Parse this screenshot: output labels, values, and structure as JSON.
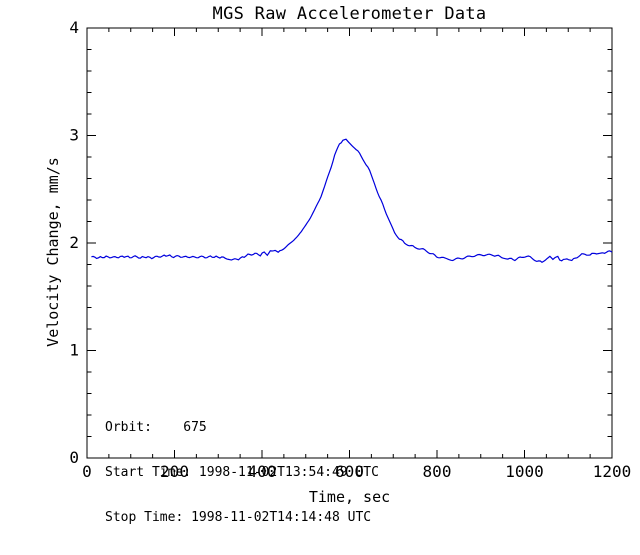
{
  "page": {
    "background": "#ffffff"
  },
  "chart_data": {
    "type": "line",
    "title": "MGS Raw Accelerometer Data",
    "xlabel": "Time, sec",
    "ylabel": "Velocity Change, mm/s",
    "xlim": [
      0,
      1200
    ],
    "ylim": [
      0,
      4
    ],
    "xticks": [
      0,
      200,
      400,
      600,
      800,
      1000,
      1200
    ],
    "yticks": [
      0,
      1,
      2,
      3,
      4
    ],
    "x_minor_step": 50,
    "y_minor_step": 0.2,
    "grid": false,
    "legend": null,
    "frame": "box-with-inward-ticks",
    "axis_color": "#000000",
    "series": [
      {
        "name": "velocity-change",
        "color": "#0000DD",
        "points": [
          [
            10,
            1.87
          ],
          [
            22,
            1.862
          ],
          [
            35,
            1.868
          ],
          [
            48,
            1.872
          ],
          [
            60,
            1.865
          ],
          [
            72,
            1.87
          ],
          [
            85,
            1.875
          ],
          [
            98,
            1.868
          ],
          [
            110,
            1.873
          ],
          [
            122,
            1.865
          ],
          [
            135,
            1.87
          ],
          [
            148,
            1.862
          ],
          [
            160,
            1.872
          ],
          [
            172,
            1.878
          ],
          [
            185,
            1.885
          ],
          [
            198,
            1.87
          ],
          [
            210,
            1.878
          ],
          [
            222,
            1.868
          ],
          [
            234,
            1.872
          ],
          [
            246,
            1.866
          ],
          [
            258,
            1.872
          ],
          [
            270,
            1.868
          ],
          [
            282,
            1.872
          ],
          [
            295,
            1.87
          ],
          [
            308,
            1.865
          ],
          [
            320,
            1.858
          ],
          [
            330,
            1.85
          ],
          [
            342,
            1.845
          ],
          [
            355,
            1.865
          ],
          [
            368,
            1.89
          ],
          [
            376,
            1.895
          ],
          [
            384,
            1.9
          ],
          [
            396,
            1.888
          ],
          [
            405,
            1.915
          ],
          [
            412,
            1.89
          ],
          [
            419,
            1.935
          ],
          [
            430,
            1.93
          ],
          [
            437,
            1.908
          ],
          [
            449,
            1.95
          ],
          [
            460,
            1.98
          ],
          [
            470,
            2.01
          ],
          [
            480,
            2.05
          ],
          [
            490,
            2.1
          ],
          [
            500,
            2.16
          ],
          [
            510,
            2.22
          ],
          [
            520,
            2.3
          ],
          [
            531,
            2.4
          ],
          [
            543,
            2.52
          ],
          [
            554,
            2.66
          ],
          [
            566,
            2.81
          ],
          [
            577,
            2.92
          ],
          [
            585,
            2.96
          ],
          [
            592,
            2.965
          ],
          [
            598,
            2.945
          ],
          [
            605,
            2.91
          ],
          [
            615,
            2.87
          ],
          [
            623,
            2.83
          ],
          [
            634,
            2.76
          ],
          [
            646,
            2.67
          ],
          [
            657,
            2.56
          ],
          [
            668,
            2.43
          ],
          [
            680,
            2.32
          ],
          [
            692,
            2.19
          ],
          [
            703,
            2.1
          ],
          [
            714,
            2.04
          ],
          [
            726,
            2.0
          ],
          [
            737,
            1.98
          ],
          [
            749,
            1.96
          ],
          [
            760,
            1.95
          ],
          [
            772,
            1.935
          ],
          [
            783,
            1.91
          ],
          [
            799,
            1.875
          ],
          [
            818,
            1.855
          ],
          [
            836,
            1.845
          ],
          [
            859,
            1.86
          ],
          [
            882,
            1.88
          ],
          [
            905,
            1.89
          ],
          [
            928,
            1.888
          ],
          [
            948,
            1.87
          ],
          [
            962,
            1.855
          ],
          [
            978,
            1.845
          ],
          [
            994,
            1.87
          ],
          [
            1005,
            1.88
          ],
          [
            1017,
            1.86
          ],
          [
            1028,
            1.835
          ],
          [
            1040,
            1.82
          ],
          [
            1051,
            1.86
          ],
          [
            1058,
            1.88
          ],
          [
            1065,
            1.845
          ],
          [
            1076,
            1.87
          ],
          [
            1085,
            1.83
          ],
          [
            1097,
            1.86
          ],
          [
            1108,
            1.835
          ],
          [
            1120,
            1.87
          ],
          [
            1131,
            1.9
          ],
          [
            1142,
            1.88
          ],
          [
            1154,
            1.905
          ],
          [
            1165,
            1.89
          ],
          [
            1179,
            1.91
          ],
          [
            1195,
            1.92
          ],
          [
            1200,
            1.915
          ]
        ]
      }
    ],
    "annotations": [
      "Orbit:    675",
      "Start Time: 1998-11-02T13:54:49 UTC",
      "Stop Time: 1998-11-02T14:14:48 UTC"
    ]
  }
}
